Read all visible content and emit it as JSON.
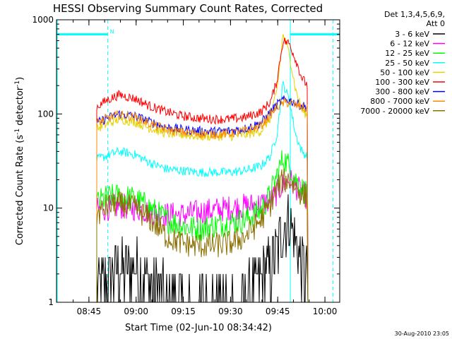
{
  "chart_data": {
    "type": "line",
    "title": "HESSI Observing Summary Count Rates, Corrected",
    "xlabel": "Start Time (02-Jun-10 08:34:42)",
    "ylabel_main": "Corrected Count Rate (s",
    "ylabel_sup1": "-1",
    "ylabel_mid": " detector",
    "ylabel_sup2": "-1",
    "ylabel_end": ")",
    "y_scale": "log",
    "ylim": [
      1,
      1000
    ],
    "xlim_minutes_after_0834": [
      0,
      90
    ],
    "y_ticks": [
      "1",
      "10",
      "100",
      "1000"
    ],
    "x_ticks": [
      {
        "label": "08:45",
        "min": 10.3
      },
      {
        "label": "09:00",
        "min": 25.3
      },
      {
        "label": "09:15",
        "min": 40.3
      },
      {
        "label": "09:30",
        "min": 55.3
      },
      {
        "label": "09:45",
        "min": 70.3
      },
      {
        "label": "10:00",
        "min": 85.3
      }
    ],
    "legend_header_1": "Det 1,3,4,5,6,9,",
    "legend_header_2": "Att 0",
    "legend_position": "right, outside plot",
    "timestamp": "30-Aug-2010 23:05",
    "night_flag_label": "N",
    "events": {
      "night_bar_left_minutes": [
        0,
        16.3
      ],
      "night_bar_right_minutes": [
        74.3,
        90
      ],
      "dashed_lines_minutes": [
        16.3,
        87.9
      ],
      "solid_line_minutes": [
        74.3
      ],
      "data_start_minutes": 12.8,
      "data_end_minutes": 79.9
    },
    "series": [
      {
        "name": "3 - 6 keV",
        "color": "#000000",
        "x": [
          13,
          16,
          20,
          25,
          30,
          35,
          40,
          45,
          50,
          55,
          60,
          65,
          68,
          70,
          72,
          74,
          76,
          78,
          79.8
        ],
        "y": [
          1.5,
          1.8,
          2.2,
          2.4,
          1.6,
          1.1,
          1.0,
          1.0,
          1.0,
          1.0,
          1.1,
          1.8,
          2.4,
          3.5,
          6.5,
          7.5,
          4.5,
          2.5,
          2.0
        ]
      },
      {
        "name": "6 - 12 keV",
        "color": "#ff00ff",
        "x": [
          13,
          16,
          20,
          25,
          30,
          35,
          40,
          45,
          50,
          55,
          60,
          65,
          68,
          70,
          72,
          74,
          76,
          78,
          79.8
        ],
        "y": [
          9.5,
          10.0,
          10.5,
          10.0,
          9.0,
          8.5,
          8.5,
          9.0,
          9.5,
          10.0,
          10.5,
          11.0,
          12.0,
          14.5,
          18.0,
          20.0,
          17.0,
          14.5,
          13.0
        ]
      },
      {
        "name": "12 - 25 keV",
        "color": "#00ff00",
        "x": [
          13,
          16,
          20,
          25,
          30,
          35,
          40,
          45,
          50,
          55,
          60,
          65,
          68,
          70,
          72,
          74,
          76,
          78,
          79.8
        ],
        "y": [
          11.5,
          13.0,
          13.5,
          12.5,
          10.0,
          7.5,
          6.5,
          6.0,
          6.5,
          7.0,
          7.5,
          9.5,
          14.0,
          22.0,
          34.0,
          28.0,
          20.0,
          16.0,
          14.5
        ]
      },
      {
        "name": "25 - 50 keV",
        "color": "#00ffff",
        "x": [
          13,
          16,
          20,
          25,
          30,
          35,
          40,
          45,
          50,
          55,
          60,
          65,
          68,
          70,
          72,
          74,
          76,
          78,
          79.8
        ],
        "y": [
          33,
          36,
          40,
          37,
          30,
          26,
          25,
          24,
          24,
          24,
          25,
          28,
          36,
          60,
          210,
          140,
          60,
          40,
          35
        ]
      },
      {
        "name": "50 - 100 keV",
        "color": "#e6d200",
        "x": [
          13,
          16,
          20,
          25,
          30,
          35,
          40,
          45,
          50,
          55,
          60,
          65,
          68,
          70,
          72,
          74,
          76,
          78,
          79.8
        ],
        "y": [
          70,
          78,
          88,
          82,
          70,
          62,
          60,
          58,
          58,
          58,
          60,
          66,
          90,
          170,
          700,
          430,
          180,
          110,
          95
        ]
      },
      {
        "name": "100 - 300 keV",
        "color": "#ff0000",
        "x": [
          13,
          16,
          20,
          25,
          30,
          35,
          40,
          45,
          50,
          55,
          60,
          65,
          68,
          70,
          72,
          74,
          76,
          78,
          79.8
        ],
        "y": [
          120,
          140,
          160,
          145,
          120,
          105,
          95,
          90,
          88,
          88,
          92,
          105,
          135,
          220,
          600,
          560,
          380,
          240,
          200
        ]
      },
      {
        "name": "300 - 800 keV",
        "color": "#0000ff",
        "x": [
          13,
          16,
          20,
          25,
          30,
          35,
          40,
          45,
          50,
          55,
          60,
          65,
          68,
          70,
          72,
          74,
          76,
          78,
          79.8
        ],
        "y": [
          80,
          90,
          100,
          95,
          82,
          72,
          68,
          66,
          65,
          66,
          70,
          80,
          105,
          125,
          140,
          140,
          130,
          122,
          118
        ]
      },
      {
        "name": "800 - 7000 keV",
        "color": "#ff8800",
        "x": [
          13,
          16,
          20,
          25,
          30,
          35,
          40,
          45,
          50,
          55,
          60,
          65,
          68,
          70,
          72,
          74,
          76,
          78,
          79.8
        ],
        "y": [
          80,
          90,
          98,
          92,
          78,
          68,
          64,
          62,
          61,
          62,
          66,
          75,
          98,
          118,
          130,
          132,
          124,
          118,
          112
        ]
      },
      {
        "name": "7000 - 20000 keV",
        "color": "#8b7000",
        "x": [
          13,
          16,
          20,
          25,
          30,
          35,
          40,
          45,
          50,
          55,
          60,
          65,
          68,
          70,
          72,
          74,
          76,
          78,
          79.8
        ],
        "y": [
          8.5,
          10.5,
          11.0,
          10.0,
          7.5,
          5.0,
          4.2,
          4.0,
          4.0,
          4.2,
          5.0,
          7.5,
          11.0,
          16.0,
          19.5,
          20.0,
          17.0,
          14.0,
          12.5
        ]
      }
    ]
  }
}
